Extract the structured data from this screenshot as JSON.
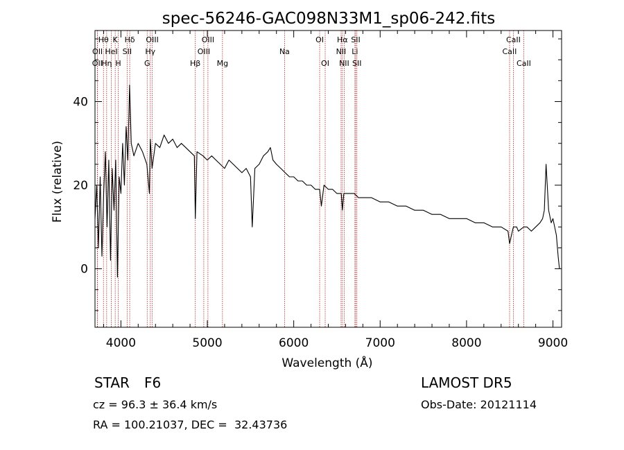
{
  "chart_data": {
    "type": "line",
    "title": "spec-56246-GAC098N33M1_sp06-242.fits",
    "xlabel": "Wavelength (Å)",
    "ylabel": "Flux (relative)",
    "xlim": [
      3700,
      9100
    ],
    "ylim": [
      -14,
      57
    ],
    "xticks": [
      4000,
      5000,
      6000,
      7000,
      8000,
      9000
    ],
    "yticks": [
      0,
      20,
      40
    ],
    "series": [
      {
        "x": [
          3700,
          3720,
          3740,
          3760,
          3780,
          3800,
          3820,
          3840,
          3860,
          3880,
          3900,
          3920,
          3940,
          3960,
          3980,
          4000,
          4020,
          4040,
          4060,
          4080,
          4100,
          4120,
          4150,
          4200,
          4250,
          4300,
          4330,
          4340,
          4360,
          4400,
          4450,
          4500,
          4550,
          4600,
          4650,
          4700,
          4750,
          4800,
          4850,
          4861,
          4880,
          4950,
          5000,
          5050,
          5100,
          5150,
          5200,
          5250,
          5300,
          5350,
          5400,
          5450,
          5500,
          5520,
          5550,
          5600,
          5650,
          5700,
          5730,
          5760,
          5800,
          5850,
          5900,
          5950,
          6000,
          6050,
          6100,
          6150,
          6200,
          6250,
          6300,
          6320,
          6350,
          6400,
          6450,
          6500,
          6550,
          6563,
          6580,
          6600,
          6650,
          6700,
          6750,
          6800,
          6900,
          7000,
          7100,
          7200,
          7300,
          7400,
          7500,
          7600,
          7700,
          7800,
          7900,
          8000,
          8100,
          8200,
          8300,
          8400,
          8480,
          8498,
          8530,
          8542,
          8580,
          8600,
          8662,
          8700,
          8750,
          8800,
          8850,
          8880,
          8900,
          8920,
          8950,
          8980,
          9000,
          9020,
          9040,
          9060,
          9075
        ],
        "y": [
          12,
          20,
          5,
          22,
          3,
          18,
          28,
          10,
          26,
          2,
          24,
          14,
          26,
          -2,
          22,
          18,
          30,
          20,
          34,
          26,
          44,
          30,
          27,
          30,
          28,
          25,
          18,
          31,
          24,
          30,
          29,
          32,
          30,
          31,
          29,
          30,
          29,
          28,
          27,
          12,
          28,
          27,
          26,
          27,
          26,
          25,
          24,
          26,
          25,
          24,
          23,
          24,
          22,
          10,
          24,
          25,
          27,
          28,
          29,
          26,
          25,
          24,
          23,
          22,
          22,
          21,
          21,
          20,
          20,
          19,
          19,
          15,
          20,
          19,
          19,
          18,
          18,
          14,
          18,
          18,
          18,
          18,
          17,
          17,
          17,
          16,
          16,
          15,
          15,
          14,
          14,
          13,
          13,
          12,
          12,
          12,
          11,
          11,
          10,
          10,
          9,
          6,
          9,
          10,
          10,
          9,
          10,
          10,
          9,
          10,
          11,
          12,
          14,
          25,
          14,
          11,
          12,
          10,
          8,
          3,
          0
        ],
        "color": "#000000"
      }
    ],
    "lines": [
      {
        "label": "OII",
        "wavelength": 3727,
        "tier": 2
      },
      {
        "label": "OII",
        "wavelength": 3729,
        "tier": 1
      },
      {
        "label": "Hθ",
        "wavelength": 3798,
        "tier": 0
      },
      {
        "label": "Hη",
        "wavelength": 3835,
        "tier": 2
      },
      {
        "label": "HeI",
        "wavelength": 3889,
        "tier": 1
      },
      {
        "label": "K",
        "wavelength": 3934,
        "tier": 0
      },
      {
        "label": "H",
        "wavelength": 3969,
        "tier": 2
      },
      {
        "label": "SII",
        "wavelength": 4072,
        "tier": 1
      },
      {
        "label": "Hδ",
        "wavelength": 4102,
        "tier": 0
      },
      {
        "label": "G",
        "wavelength": 4304,
        "tier": 2
      },
      {
        "label": "Hγ",
        "wavelength": 4340,
        "tier": 1
      },
      {
        "label": "OIII",
        "wavelength": 4363,
        "tier": 0
      },
      {
        "label": "Hβ",
        "wavelength": 4861,
        "tier": 2
      },
      {
        "label": "OIII",
        "wavelength": 4959,
        "tier": 1
      },
      {
        "label": "OIII",
        "wavelength": 5007,
        "tier": 0
      },
      {
        "label": "Mg",
        "wavelength": 5175,
        "tier": 2
      },
      {
        "label": "Na",
        "wavelength": 5894,
        "tier": 1
      },
      {
        "label": "OI",
        "wavelength": 6300,
        "tier": 0
      },
      {
        "label": "OI",
        "wavelength": 6364,
        "tier": 2
      },
      {
        "label": "NII",
        "wavelength": 6548,
        "tier": 1
      },
      {
        "label": "Hα",
        "wavelength": 6563,
        "tier": 0
      },
      {
        "label": "NII",
        "wavelength": 6584,
        "tier": 2
      },
      {
        "label": "Li",
        "wavelength": 6708,
        "tier": 1
      },
      {
        "label": "SII",
        "wavelength": 6717,
        "tier": 0
      },
      {
        "label": "SII",
        "wavelength": 6731,
        "tier": 2
      },
      {
        "label": "CaII",
        "wavelength": 8498,
        "tier": 1
      },
      {
        "label": "CaII",
        "wavelength": 8542,
        "tier": 0
      },
      {
        "label": "CaII",
        "wavelength": 8662,
        "tier": 2
      }
    ],
    "line_color": "#b22222"
  },
  "footer": {
    "class": "STAR",
    "subclass": "F6",
    "survey": "LAMOST DR5",
    "cz": "cz = 96.3 ± 36.4 km/s",
    "obs_date": "Obs-Date: 20121114",
    "radec": "RA = 100.21037, DEC =  32.43736"
  }
}
